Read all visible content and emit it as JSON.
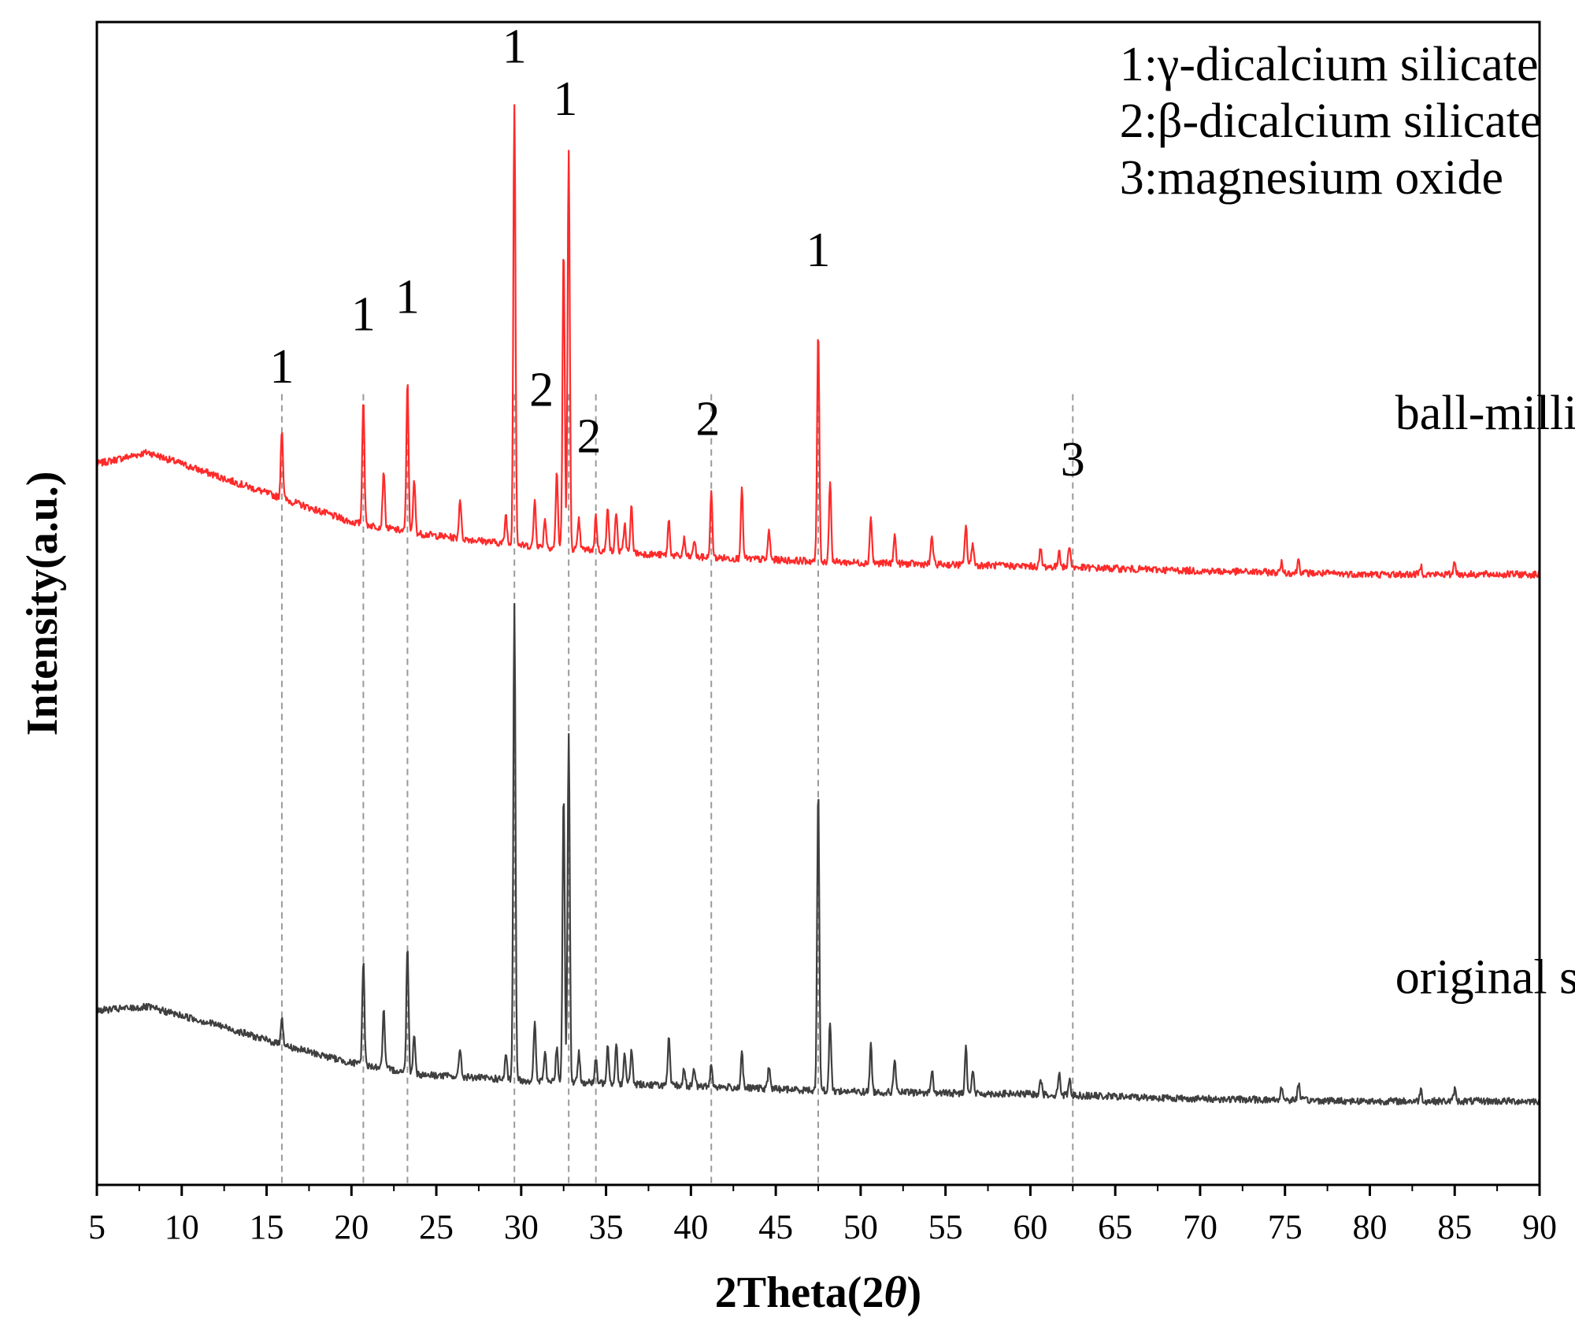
{
  "chart_data": {
    "type": "line",
    "title": "",
    "xlabel": "2Theta(2θ)",
    "xlabel_prefix": "2Theta(2",
    "xlabel_theta": "θ",
    "xlabel_suffix": ")",
    "ylabel": "Intensity(a.u.)",
    "xlim": [
      5,
      90
    ],
    "ylim": [
      0,
      100
    ],
    "xticks": [
      5,
      10,
      15,
      20,
      25,
      30,
      35,
      40,
      45,
      50,
      55,
      60,
      65,
      70,
      75,
      80,
      85,
      90
    ],
    "legend": [
      "1:γ-dicalcium silicate",
      "2:β-dicalcium silicate",
      "3:magnesium oxide"
    ],
    "reference_lines": [
      15.9,
      20.7,
      23.3,
      29.6,
      32.8,
      34.4,
      41.2,
      47.5,
      62.5
    ],
    "series": [
      {
        "name": "ball-milling",
        "color": "#ff2a2a",
        "baseline": [
          [
            5,
            62
          ],
          [
            8,
            63
          ],
          [
            12,
            61
          ],
          [
            16,
            59
          ],
          [
            20,
            57
          ],
          [
            24,
            56
          ],
          [
            30,
            55
          ],
          [
            40,
            54
          ],
          [
            50,
            53.5
          ],
          [
            60,
            53.2
          ],
          [
            70,
            52.8
          ],
          [
            80,
            52.5
          ],
          [
            90,
            52.5
          ]
        ],
        "peaks": [
          [
            15.9,
            6
          ],
          [
            20.7,
            11
          ],
          [
            21.9,
            5
          ],
          [
            23.3,
            13
          ],
          [
            23.7,
            4.5
          ],
          [
            26.4,
            3.5
          ],
          [
            29.1,
            2.5
          ],
          [
            29.6,
            38
          ],
          [
            30.8,
            4
          ],
          [
            31.4,
            2.5
          ],
          [
            32.1,
            6.5
          ],
          [
            32.5,
            26
          ],
          [
            32.8,
            34
          ],
          [
            33.4,
            2.5
          ],
          [
            34.4,
            3
          ],
          [
            35.1,
            4
          ],
          [
            35.6,
            3.5
          ],
          [
            36.1,
            2.5
          ],
          [
            36.5,
            4
          ],
          [
            38.7,
            3
          ],
          [
            39.6,
            1.5
          ],
          [
            40.2,
            1.5
          ],
          [
            41.2,
            5.5
          ],
          [
            43.0,
            6
          ],
          [
            44.6,
            2.5
          ],
          [
            47.5,
            20
          ],
          [
            48.2,
            7
          ],
          [
            50.6,
            4
          ],
          [
            52.0,
            2.5
          ],
          [
            54.2,
            2.5
          ],
          [
            56.2,
            3.5
          ],
          [
            56.6,
            2
          ],
          [
            60.6,
            1.5
          ],
          [
            61.7,
            1.5
          ],
          [
            62.3,
            2
          ],
          [
            74.8,
            0.8
          ],
          [
            75.8,
            1.2
          ],
          [
            83.0,
            0.8
          ],
          [
            85.0,
            1.2
          ]
        ]
      },
      {
        "name": "original state",
        "color": "#3f3f3f",
        "baseline": [
          [
            5,
            15
          ],
          [
            8,
            15.3
          ],
          [
            12,
            13.8
          ],
          [
            16,
            12
          ],
          [
            20,
            10.5
          ],
          [
            24,
            9.5
          ],
          [
            30,
            9
          ],
          [
            40,
            8.5
          ],
          [
            50,
            8
          ],
          [
            60,
            7.8
          ],
          [
            70,
            7.4
          ],
          [
            80,
            7.2
          ],
          [
            90,
            7.2
          ]
        ],
        "peaks": [
          [
            15.9,
            2.5
          ],
          [
            20.7,
            9
          ],
          [
            21.9,
            5
          ],
          [
            23.3,
            11
          ],
          [
            23.7,
            3.5
          ],
          [
            26.4,
            2.5
          ],
          [
            29.1,
            2
          ],
          [
            29.6,
            41
          ],
          [
            30.8,
            5
          ],
          [
            31.4,
            2.5
          ],
          [
            32.1,
            3
          ],
          [
            32.5,
            25
          ],
          [
            32.8,
            30
          ],
          [
            33.4,
            2.5
          ],
          [
            34.4,
            2
          ],
          [
            35.1,
            3.5
          ],
          [
            35.6,
            3.5
          ],
          [
            36.1,
            2.5
          ],
          [
            36.5,
            3
          ],
          [
            38.7,
            4
          ],
          [
            39.6,
            1.5
          ],
          [
            40.2,
            1.5
          ],
          [
            41.2,
            2
          ],
          [
            43.0,
            3
          ],
          [
            44.6,
            2
          ],
          [
            47.5,
            26
          ],
          [
            48.2,
            6
          ],
          [
            50.6,
            4
          ],
          [
            52.0,
            3
          ],
          [
            54.2,
            2
          ],
          [
            56.2,
            4
          ],
          [
            56.6,
            2
          ],
          [
            60.6,
            1.5
          ],
          [
            61.7,
            2
          ],
          [
            62.3,
            1.5
          ],
          [
            74.8,
            1.2
          ],
          [
            75.8,
            1.5
          ],
          [
            83.0,
            1
          ],
          [
            85.0,
            1
          ]
        ]
      }
    ],
    "annotations": [
      {
        "text": "1",
        "x": 15.9,
        "y": 69
      },
      {
        "text": "1",
        "x": 20.7,
        "y": 73.5
      },
      {
        "text": "1",
        "x": 23.3,
        "y": 75
      },
      {
        "text": "1",
        "x": 29.6,
        "y": 96.5
      },
      {
        "text": "1",
        "x": 32.6,
        "y": 92
      },
      {
        "text": "2",
        "x": 31.2,
        "y": 67
      },
      {
        "text": "2",
        "x": 34.0,
        "y": 63
      },
      {
        "text": "2",
        "x": 41.0,
        "y": 64.5
      },
      {
        "text": "1",
        "x": 47.5,
        "y": 79
      },
      {
        "text": "3",
        "x": 62.5,
        "y": 61
      },
      {
        "text": "ball-milling",
        "x": 81.5,
        "y": 65
      },
      {
        "text": "original state",
        "x": 81.5,
        "y": 16.5
      }
    ]
  }
}
